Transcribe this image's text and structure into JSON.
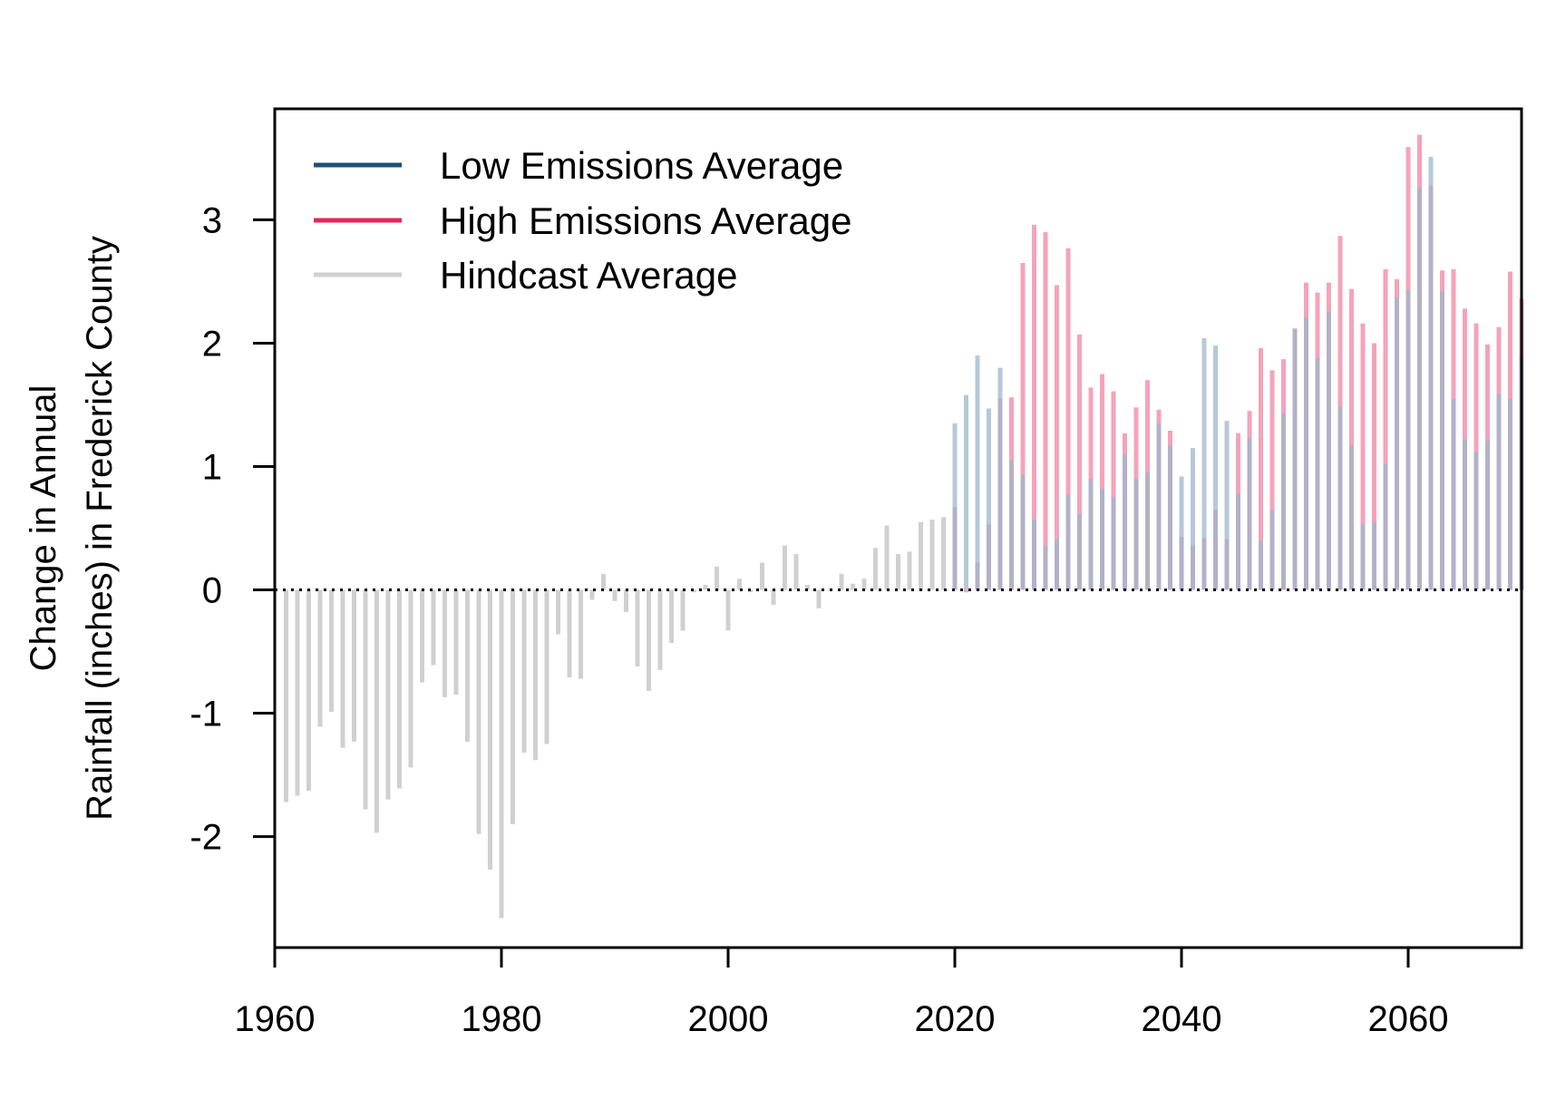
{
  "chart_data": {
    "type": "bar",
    "title": "",
    "xlabel": "",
    "ylabel_lines": [
      "Change in Annual",
      "Rainfall (inches) in Frederick County"
    ],
    "xlim": [
      1960,
      2070
    ],
    "ylim": [
      -2.9,
      3.9
    ],
    "x_ticks": [
      1960,
      1980,
      2000,
      2020,
      2040,
      2060
    ],
    "y_ticks": [
      -2,
      -1,
      0,
      1,
      2,
      3
    ],
    "baseline": 0,
    "legend_position": "top-left",
    "series": [
      {
        "name": "Low Emissions Average",
        "legend_color": "#1f4e79",
        "bar_color": "#9db6cc",
        "x": [
          2020,
          2021,
          2022,
          2023,
          2024,
          2025,
          2026,
          2027,
          2028,
          2029,
          2030,
          2031,
          2032,
          2033,
          2034,
          2035,
          2036,
          2037,
          2038,
          2039,
          2040,
          2041,
          2042,
          2043,
          2044,
          2045,
          2046,
          2047,
          2048,
          2049,
          2050,
          2051,
          2052,
          2053,
          2054,
          2055,
          2056,
          2057,
          2058,
          2059,
          2060,
          2061,
          2062,
          2063,
          2064,
          2065,
          2066,
          2067,
          2068,
          2069,
          2070
        ],
        "values": [
          1.35,
          1.58,
          1.9,
          1.47,
          1.8,
          1.05,
          0.93,
          0.57,
          0.36,
          0.41,
          0.77,
          0.61,
          0.9,
          0.82,
          0.75,
          1.1,
          0.9,
          0.95,
          1.35,
          1.17,
          0.92,
          1.15,
          2.04,
          1.98,
          1.37,
          0.78,
          1.23,
          0.4,
          0.65,
          1.43,
          2.11,
          2.21,
          1.88,
          2.25,
          1.49,
          1.17,
          0.53,
          0.55,
          1.02,
          2.37,
          2.43,
          3.26,
          3.51,
          2.42,
          1.55,
          1.22,
          1.12,
          1.21,
          1.59,
          1.55,
          1.9
        ]
      },
      {
        "name": "High Emissions Average",
        "legend_color": "#e8245c",
        "bar_color": "#f4a3ba",
        "x": [
          2020,
          2021,
          2022,
          2023,
          2024,
          2025,
          2026,
          2027,
          2028,
          2029,
          2030,
          2031,
          2032,
          2033,
          2034,
          2035,
          2036,
          2037,
          2038,
          2039,
          2040,
          2041,
          2042,
          2043,
          2044,
          2045,
          2046,
          2047,
          2048,
          2049,
          2050,
          2051,
          2052,
          2053,
          2054,
          2055,
          2056,
          2057,
          2058,
          2059,
          2060,
          2061,
          2062,
          2063,
          2064,
          2065,
          2066,
          2067,
          2068,
          2069,
          2070
        ],
        "values": [
          0.67,
          -0.02,
          0.22,
          0.53,
          1.55,
          1.56,
          2.65,
          2.96,
          2.9,
          2.47,
          2.77,
          2.07,
          1.64,
          1.75,
          1.61,
          1.27,
          1.48,
          1.7,
          1.46,
          1.29,
          0.43,
          0.36,
          0.42,
          0.65,
          0.41,
          1.27,
          1.45,
          1.96,
          1.78,
          1.87,
          2.12,
          2.49,
          2.41,
          2.49,
          2.87,
          2.44,
          2.16,
          2.0,
          2.6,
          2.52,
          3.59,
          3.69,
          3.28,
          2.59,
          2.6,
          2.28,
          2.16,
          1.99,
          2.13,
          2.58,
          2.36
        ]
      },
      {
        "name": "Hindcast Average",
        "legend_color": "#d0d0d0",
        "bar_color": "#d0d0d0",
        "x": [
          1961,
          1962,
          1963,
          1964,
          1965,
          1966,
          1967,
          1968,
          1969,
          1970,
          1971,
          1972,
          1973,
          1974,
          1975,
          1976,
          1977,
          1978,
          1979,
          1980,
          1981,
          1982,
          1983,
          1984,
          1985,
          1986,
          1987,
          1988,
          1989,
          1990,
          1991,
          1992,
          1993,
          1994,
          1995,
          1996,
          1997,
          1998,
          1999,
          2000,
          2001,
          2002,
          2003,
          2004,
          2005,
          2006,
          2007,
          2008,
          2009,
          2010,
          2011,
          2012,
          2013,
          2014,
          2015,
          2016,
          2017,
          2018,
          2019
        ],
        "values": [
          -1.72,
          -1.67,
          -1.63,
          -1.11,
          -0.99,
          -1.28,
          -1.23,
          -1.78,
          -1.97,
          -1.7,
          -1.61,
          -1.44,
          -0.75,
          -0.61,
          -0.87,
          -0.85,
          -1.23,
          -1.98,
          -2.27,
          -2.66,
          -1.9,
          -1.32,
          -1.38,
          -1.25,
          -0.36,
          -0.71,
          -0.72,
          -0.08,
          0.13,
          -0.09,
          -0.18,
          -0.62,
          -0.82,
          -0.65,
          -0.43,
          -0.33,
          -0.02,
          0.04,
          0.19,
          -0.33,
          0.09,
          -0.02,
          0.22,
          -0.12,
          0.36,
          0.29,
          0.04,
          -0.15,
          0.0,
          0.13,
          0.05,
          0.09,
          0.34,
          0.52,
          0.29,
          0.31,
          0.55,
          0.57,
          0.59
        ]
      }
    ]
  }
}
